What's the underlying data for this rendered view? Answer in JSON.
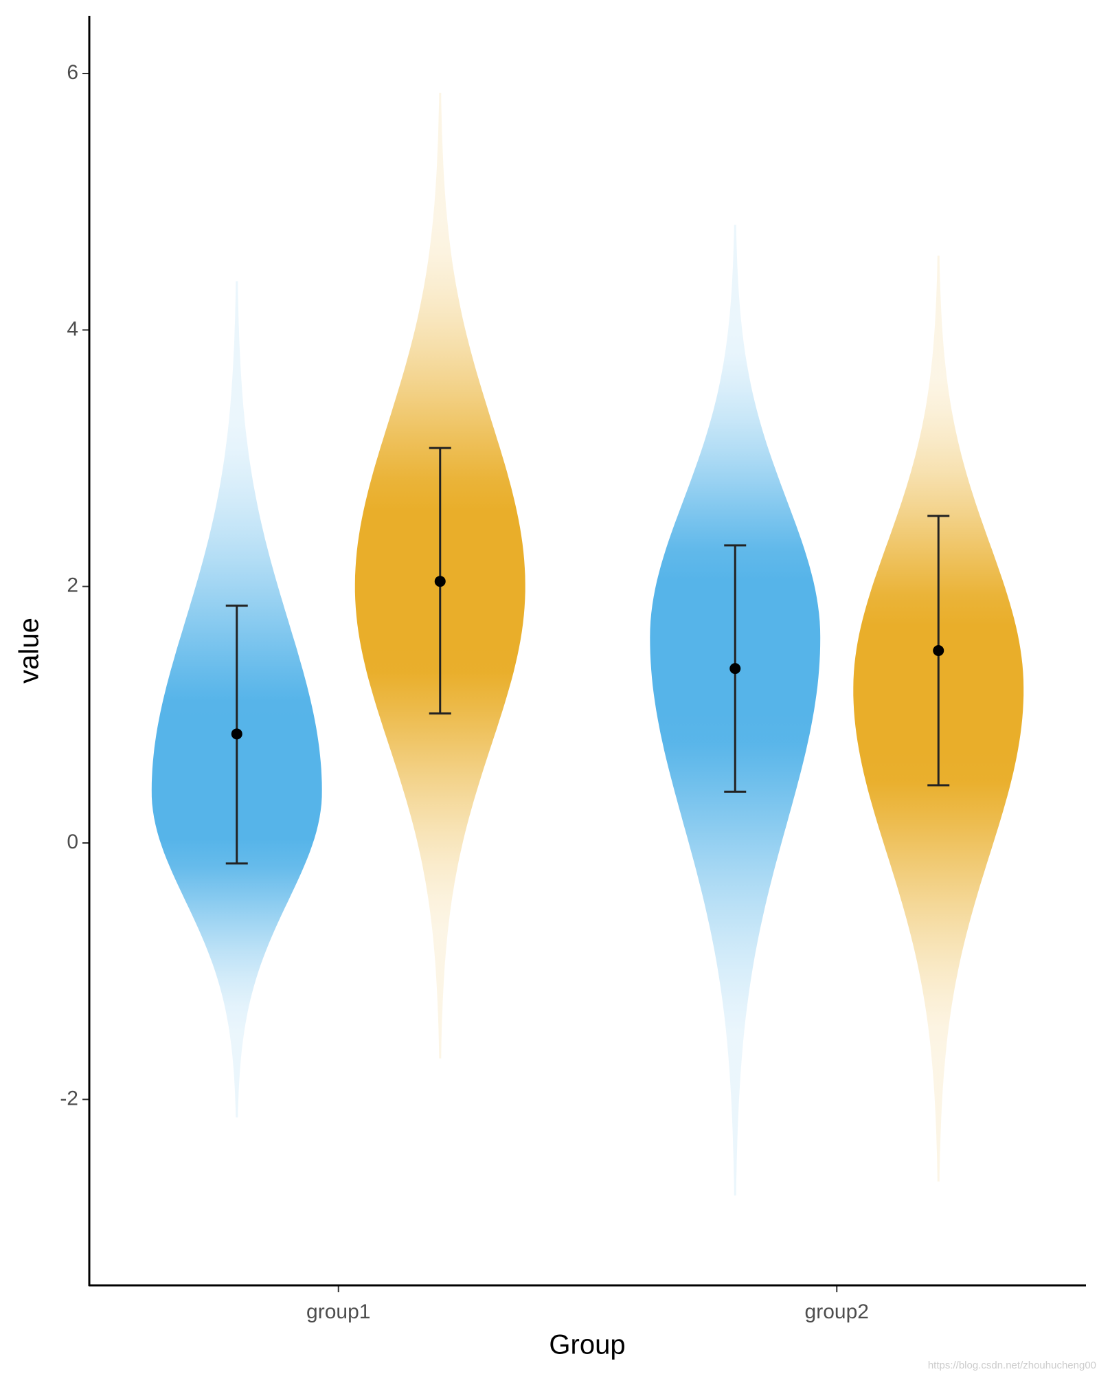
{
  "chart_data": {
    "type": "violin",
    "x_label": "Group",
    "y_label": "value",
    "categories": [
      "group1",
      "group2"
    ],
    "series": [
      {
        "color": "#56B4E9",
        "values": [
          0.85,
          1.36
        ],
        "lower": [
          -0.16,
          0.4
        ],
        "upper": [
          1.85,
          2.32
        ],
        "min": [
          -2.14,
          -2.75
        ],
        "peak": [
          0.4,
          1.6
        ],
        "max": [
          4.38,
          4.82
        ]
      },
      {
        "color": "#E9AE2A",
        "values": [
          2.04,
          1.5
        ],
        "lower": [
          1.01,
          0.45
        ],
        "upper": [
          3.08,
          2.55
        ],
        "min": [
          -1.68,
          -2.64
        ],
        "peak": [
          2.0,
          1.2
        ],
        "max": [
          5.85,
          4.58
        ]
      }
    ],
    "ylim": [
      -3.45,
      6.45
    ],
    "yticks": [
      -2,
      0,
      2,
      4,
      6
    ],
    "watermark": "https://blog.csdn.net/zhouhucheng00"
  }
}
